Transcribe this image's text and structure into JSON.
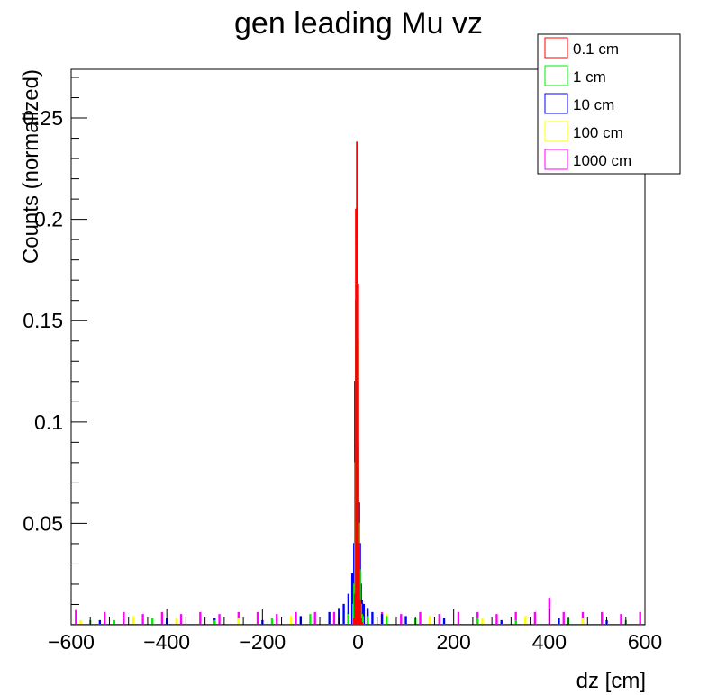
{
  "chart_data": {
    "type": "histogram",
    "title": "gen leading Mu vz",
    "xlabel": "dz [cm]",
    "ylabel": "Counts (normalized)",
    "xlim": [
      -600,
      600
    ],
    "ylim": [
      0,
      0.274
    ],
    "x_ticks": [
      "−600",
      "−400",
      "−200",
      "0",
      "200",
      "400",
      "600"
    ],
    "x_tick_values": [
      -600,
      -400,
      -200,
      0,
      200,
      400,
      600
    ],
    "y_ticks": [
      "0.05",
      "0.1",
      "0.15",
      "0.2",
      "0.25"
    ],
    "y_tick_values": [
      0.05,
      0.1,
      0.15,
      0.2,
      0.25
    ],
    "grid": false,
    "legend_position": "top-right",
    "series": [
      {
        "name": "0.1 cm",
        "color": "#ff0000",
        "x": [
          -8,
          -6,
          -4,
          -2,
          0,
          2,
          4,
          6,
          8
        ],
        "values": [
          0.003,
          0.015,
          0.205,
          0.238,
          0.168,
          0.04,
          0.012,
          0.003,
          0.001
        ]
      },
      {
        "name": "1 cm",
        "color": "#00ee00",
        "x": [
          -560,
          -510,
          -430,
          -300,
          -180,
          -100,
          -20,
          -10,
          -8,
          -6,
          -4,
          -2,
          0,
          2,
          4,
          6,
          8,
          10,
          20,
          60,
          120,
          250,
          330,
          440,
          560
        ],
        "values": [
          0.002,
          0.002,
          0.003,
          0.002,
          0.003,
          0.005,
          0.005,
          0.01,
          0.02,
          0.08,
          0.16,
          0.19,
          0.14,
          0.05,
          0.027,
          0.01,
          0.005,
          0.004,
          0.004,
          0.004,
          0.003,
          0.003,
          0.002,
          0.003,
          0.002
        ]
      },
      {
        "name": "10 cm",
        "color": "#0000ff",
        "x": [
          -540,
          -400,
          -300,
          -200,
          -120,
          -60,
          -40,
          -30,
          -20,
          -12,
          -8,
          -6,
          -4,
          -2,
          0,
          2,
          4,
          6,
          8,
          12,
          20,
          30,
          50,
          100,
          180,
          300,
          420,
          520
        ],
        "values": [
          0.002,
          0.003,
          0.003,
          0.002,
          0.004,
          0.006,
          0.008,
          0.01,
          0.015,
          0.025,
          0.04,
          0.12,
          0.16,
          0.1,
          0.09,
          0.06,
          0.04,
          0.02,
          0.012,
          0.01,
          0.008,
          0.006,
          0.005,
          0.004,
          0.003,
          0.002,
          0.003,
          0.002
        ]
      },
      {
        "name": "100 cm",
        "color": "#ffff00",
        "x": [
          -580,
          -470,
          -380,
          -250,
          -140,
          -60,
          -10,
          -4,
          -2,
          0,
          2,
          4,
          10,
          60,
          150,
          260,
          350,
          470,
          560
        ],
        "values": [
          0.002,
          0.004,
          0.003,
          0.003,
          0.004,
          0.006,
          0.01,
          0.09,
          0.11,
          0.085,
          0.05,
          0.02,
          0.006,
          0.005,
          0.004,
          0.003,
          0.004,
          0.003,
          0.002
        ]
      },
      {
        "name": "1000 cm",
        "color": "#ff00ff",
        "x": [
          -590,
          -530,
          -490,
          -450,
          -410,
          -370,
          -330,
          -290,
          -250,
          -210,
          -170,
          -130,
          -90,
          -50,
          -20,
          -6,
          -4,
          -2,
          0,
          2,
          4,
          6,
          20,
          50,
          90,
          130,
          170,
          210,
          250,
          290,
          330,
          370,
          400,
          430,
          470,
          510,
          550,
          590
        ],
        "values": [
          0.007,
          0.006,
          0.006,
          0.005,
          0.006,
          0.005,
          0.006,
          0.005,
          0.006,
          0.006,
          0.005,
          0.006,
          0.006,
          0.006,
          0.006,
          0.02,
          0.1,
          0.16,
          0.12,
          0.06,
          0.02,
          0.01,
          0.006,
          0.006,
          0.005,
          0.006,
          0.005,
          0.006,
          0.006,
          0.005,
          0.006,
          0.006,
          0.013,
          0.006,
          0.006,
          0.006,
          0.005,
          0.006
        ]
      }
    ]
  }
}
